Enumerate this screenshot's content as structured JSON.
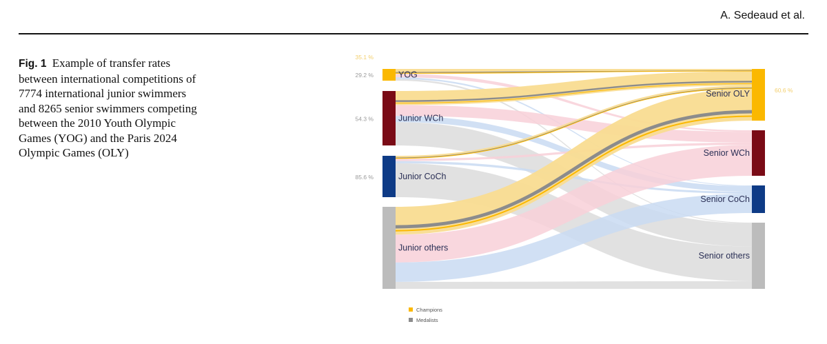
{
  "header": {
    "running_head": "A. Sedeaud et al."
  },
  "caption": {
    "label": "Fig. 1",
    "text": "Example of transfer rates between international competitions of 7774 international junior swimmers and 8265 senior swimmers competing between the 2010 Youth Olympic Games (YOG) and the Paris 2024 Olympic Games (OLY)"
  },
  "colors": {
    "champions": "#fbb800",
    "medalists": "#8c8c8c",
    "gold_flow": "#f9dc91",
    "pink_flow": "#f8d0d8",
    "blue_flow": "#c9dbf2",
    "grey_flow": "#dcdcdc",
    "oly_node": "#fbb800",
    "wch_node": "#7a0b16",
    "coch_node": "#0e3b86",
    "others_node": "#bcbcbc"
  },
  "chart_data": {
    "type": "sankey",
    "source_nodes": [
      {
        "id": "yog",
        "label": "YOG",
        "rate": "29.2 %",
        "rate_secondary": "35.1 %"
      },
      {
        "id": "jwch",
        "label": "Junior WCh",
        "rate": "54.3 %"
      },
      {
        "id": "jcoch",
        "label": "Junior CoCh",
        "rate": "85.6 %"
      },
      {
        "id": "jothers",
        "label": "Junior others",
        "rate": ""
      }
    ],
    "target_nodes": [
      {
        "id": "soly",
        "label": "Senior OLY",
        "rate": "60.6 %"
      },
      {
        "id": "swch",
        "label": "Senior WCh"
      },
      {
        "id": "scoch",
        "label": "Senior CoCh"
      },
      {
        "id": "sothers",
        "label": "Senior others"
      }
    ],
    "links": [
      {
        "source": "yog",
        "target": "soly",
        "color": "gold",
        "weight": 3
      },
      {
        "source": "yog",
        "target": "swch",
        "color": "pink",
        "weight": 2
      },
      {
        "source": "yog",
        "target": "scoch",
        "color": "blue",
        "weight": 1
      },
      {
        "source": "yog",
        "target": "sothers",
        "color": "grey",
        "weight": 1
      },
      {
        "source": "jwch",
        "target": "soly",
        "color": "gold",
        "weight": 18
      },
      {
        "source": "jwch",
        "target": "swch",
        "color": "pink",
        "weight": 14
      },
      {
        "source": "jwch",
        "target": "scoch",
        "color": "blue",
        "weight": 8
      },
      {
        "source": "jwch",
        "target": "sothers",
        "color": "grey",
        "weight": 30
      },
      {
        "source": "jcoch",
        "target": "soly",
        "color": "gold",
        "weight": 4
      },
      {
        "source": "jcoch",
        "target": "swch",
        "color": "pink",
        "weight": 3
      },
      {
        "source": "jcoch",
        "target": "scoch",
        "color": "blue",
        "weight": 3
      },
      {
        "source": "jcoch",
        "target": "sothers",
        "color": "grey",
        "weight": 45
      },
      {
        "source": "jothers",
        "target": "soly",
        "color": "gold",
        "weight": 40
      },
      {
        "source": "jothers",
        "target": "swch",
        "color": "pink",
        "weight": 40
      },
      {
        "source": "jothers",
        "target": "scoch",
        "color": "blue",
        "weight": 28
      },
      {
        "source": "jothers",
        "target": "sothers",
        "color": "grey",
        "weight": 10
      }
    ],
    "legend": [
      {
        "label": "Champions",
        "color": "#fbb800"
      },
      {
        "label": "Medalists",
        "color": "#8c8c8c"
      }
    ]
  }
}
